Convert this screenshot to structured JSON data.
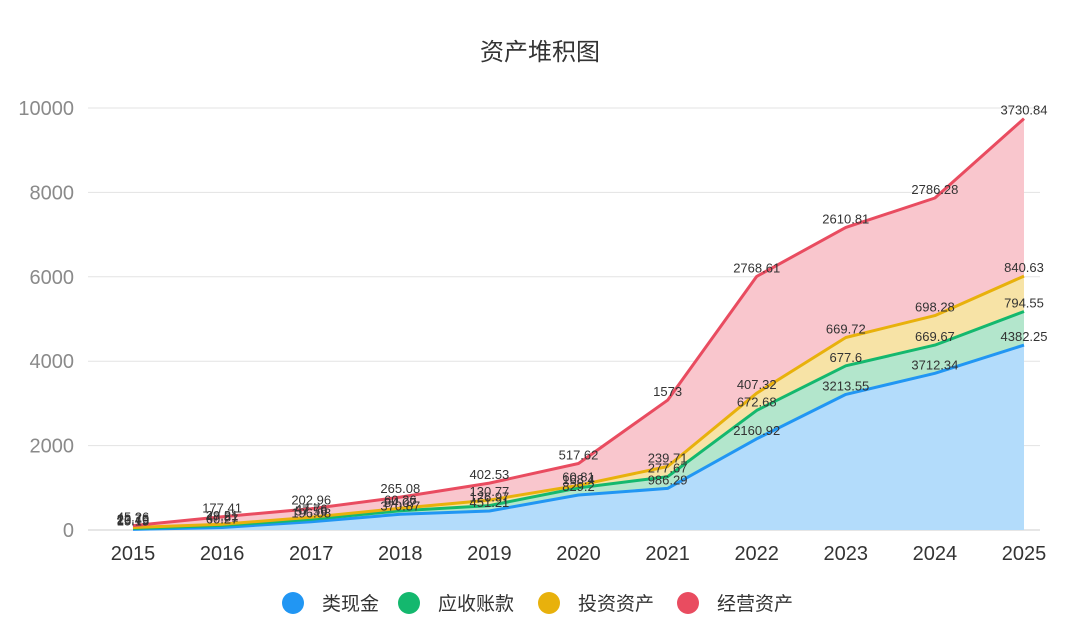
{
  "chart_data": {
    "type": "area",
    "stacked": true,
    "title": "资产堆积图",
    "xlabel": "",
    "ylabel": "",
    "categories": [
      "2015",
      "2016",
      "2017",
      "2018",
      "2019",
      "2020",
      "2021",
      "2022",
      "2023",
      "2024",
      "2025"
    ],
    "yticks": [
      "0",
      "2000",
      "4000",
      "6000",
      "8000",
      "10000"
    ],
    "ylim": [
      0,
      10000
    ],
    "grid": true,
    "legend_position": "bottom",
    "series": [
      {
        "name": "类现金",
        "color": "#2196f3",
        "fill": "#b3dcfb",
        "values": [
          15.15,
          60.27,
          196.08,
          370.87,
          451.21,
          829.2,
          986.29,
          2160.92,
          3213.55,
          3712.34,
          4382.25
        ],
        "labels": [
          "15.15",
          "60.27",
          "196.08",
          "370.87",
          "451.21",
          "829.2",
          "986.29",
          "2160.92",
          "3213.55",
          "3712.34",
          "4382.25"
        ]
      },
      {
        "name": "应收账款",
        "color": "#14b86e",
        "fill": "#b3e6cc",
        "values": [
          20.49,
          47.81,
          57.56,
          84.07,
          126.97,
          168.4,
          277.67,
          672.68,
          677.6,
          669.67,
          794.55
        ],
        "labels": [
          "20.49",
          "47.81",
          "57.56",
          "84.07",
          "126.97",
          "168.4",
          "277.67",
          "672.68",
          "677.6",
          "669.67",
          "794.55"
        ]
      },
      {
        "name": "投资资产",
        "color": "#e8b10c",
        "fill": "#f7e3a6",
        "values": [
          23.76,
          29.21,
          47.76,
          60.26,
          130.77,
          60.81,
          239.71,
          407.32,
          669.72,
          698.28,
          840.63
        ],
        "labels": [
          "23.76",
          "29.21",
          "47.76",
          "60.26",
          "130.77",
          "60.81",
          "239.71",
          "407.32",
          "669.72",
          "698.28",
          "840.63"
        ]
      },
      {
        "name": "经营资产",
        "color": "#e94c60",
        "fill": "#f9c6cd",
        "values": [
          45.26,
          177.41,
          202.96,
          265.08,
          402.53,
          517.62,
          1573,
          2768.61,
          2610.81,
          2786.28,
          3730.84
        ],
        "labels": [
          "45.26",
          "177.41",
          "202.96",
          "265.08",
          "402.53",
          "517.62",
          "1573",
          "2768.61",
          "2610.81",
          "2786.28",
          "3730.84"
        ]
      }
    ]
  }
}
